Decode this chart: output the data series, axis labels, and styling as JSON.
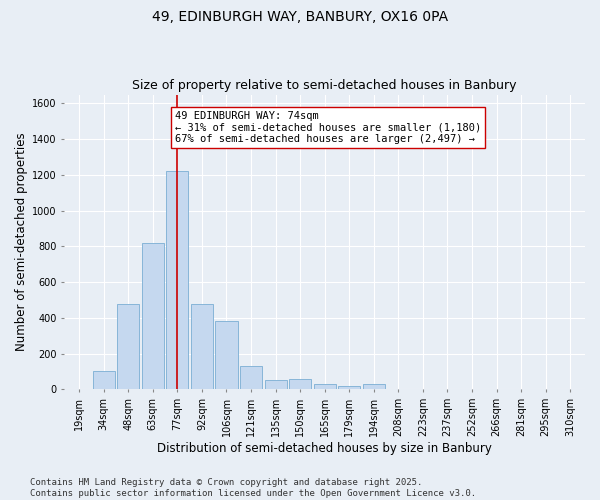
{
  "title_line1": "49, EDINBURGH WAY, BANBURY, OX16 0PA",
  "title_line2": "Size of property relative to semi-detached houses in Banbury",
  "xlabel": "Distribution of semi-detached houses by size in Banbury",
  "ylabel": "Number of semi-detached properties",
  "categories": [
    "19sqm",
    "34sqm",
    "48sqm",
    "63sqm",
    "77sqm",
    "92sqm",
    "106sqm",
    "121sqm",
    "135sqm",
    "150sqm",
    "165sqm",
    "179sqm",
    "194sqm",
    "208sqm",
    "223sqm",
    "237sqm",
    "252sqm",
    "266sqm",
    "281sqm",
    "295sqm",
    "310sqm"
  ],
  "values": [
    0,
    100,
    480,
    820,
    1220,
    480,
    380,
    130,
    50,
    55,
    30,
    20,
    30,
    0,
    0,
    0,
    0,
    0,
    0,
    0,
    0
  ],
  "bar_color": "#c5d8ef",
  "bar_edge_color": "#7aaed4",
  "vline_x_index": 4,
  "vline_color": "#cc0000",
  "annotation_text": "49 EDINBURGH WAY: 74sqm\n← 31% of semi-detached houses are smaller (1,180)\n67% of semi-detached houses are larger (2,497) →",
  "annotation_box_color": "#ffffff",
  "annotation_box_edge": "#cc0000",
  "ylim": [
    0,
    1650
  ],
  "yticks": [
    0,
    200,
    400,
    600,
    800,
    1000,
    1200,
    1400,
    1600
  ],
  "background_color": "#e8eef5",
  "footer_text": "Contains HM Land Registry data © Crown copyright and database right 2025.\nContains public sector information licensed under the Open Government Licence v3.0.",
  "title_fontsize": 10,
  "subtitle_fontsize": 9,
  "axis_label_fontsize": 8.5,
  "tick_fontsize": 7,
  "annotation_fontsize": 7.5,
  "footer_fontsize": 6.5
}
